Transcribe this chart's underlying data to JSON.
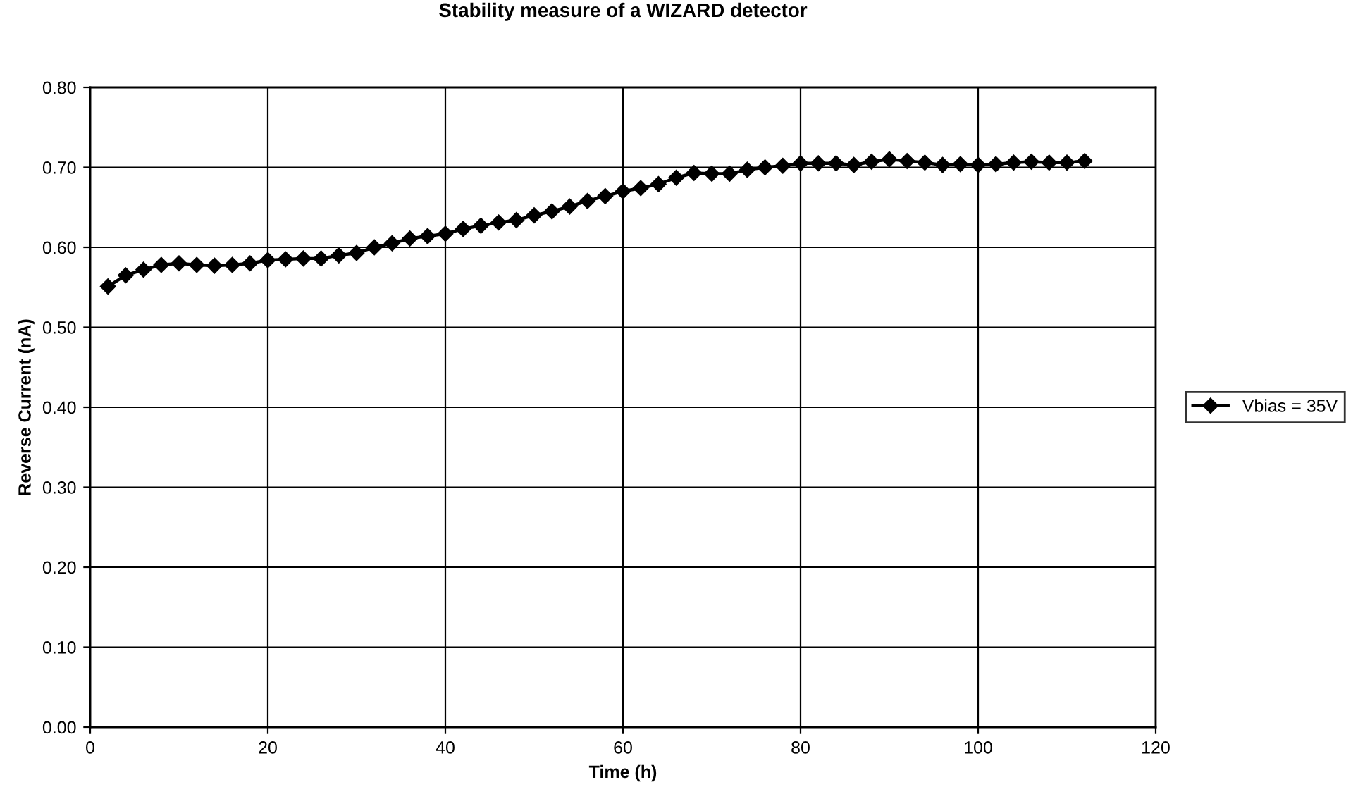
{
  "chart_data": {
    "type": "line",
    "title": "Stability measure of a WIZARD detector",
    "xlabel": "Time (h)",
    "ylabel": "Reverse Current (nA)",
    "x": [
      2,
      4,
      6,
      8,
      10,
      12,
      14,
      16,
      18,
      20,
      22,
      24,
      26,
      28,
      30,
      32,
      34,
      36,
      38,
      40,
      42,
      44,
      46,
      48,
      50,
      52,
      54,
      56,
      58,
      60,
      62,
      64,
      66,
      68,
      70,
      72,
      74,
      76,
      78,
      80,
      82,
      84,
      86,
      88,
      90,
      92,
      94,
      96,
      98,
      100,
      102,
      104,
      106,
      108,
      110,
      112
    ],
    "series": [
      {
        "name": "Vbias = 35V",
        "color": "#000000",
        "values": [
          0.551,
          0.565,
          0.572,
          0.578,
          0.58,
          0.578,
          0.577,
          0.578,
          0.58,
          0.584,
          0.585,
          0.586,
          0.586,
          0.59,
          0.593,
          0.6,
          0.605,
          0.611,
          0.614,
          0.617,
          0.623,
          0.627,
          0.631,
          0.634,
          0.64,
          0.645,
          0.651,
          0.658,
          0.664,
          0.67,
          0.674,
          0.679,
          0.687,
          0.693,
          0.692,
          0.692,
          0.697,
          0.7,
          0.702,
          0.705,
          0.705,
          0.705,
          0.703,
          0.707,
          0.71,
          0.708,
          0.706,
          0.703,
          0.704,
          0.703,
          0.704,
          0.706,
          0.707,
          0.706,
          0.706,
          0.708
        ]
      }
    ],
    "xlim": [
      0,
      120
    ],
    "xticks": [
      0,
      20,
      40,
      60,
      80,
      100,
      120
    ],
    "ylim": [
      0,
      0.8
    ],
    "yticks": [
      {
        "value": 0,
        "label": "0.00"
      },
      {
        "value": 0.1,
        "label": "0.10"
      },
      {
        "value": 0.2,
        "label": "0.20"
      },
      {
        "value": 0.3,
        "label": "0.30"
      },
      {
        "value": 0.4,
        "label": "0.40"
      },
      {
        "value": 0.5,
        "label": "0.50"
      },
      {
        "value": 0.6,
        "label": "0.60"
      },
      {
        "value": 0.7,
        "label": "0.70"
      },
      {
        "value": 0.8,
        "label": "0.80"
      }
    ],
    "grid": true,
    "legend": "right",
    "marker": "diamond",
    "line_style": "solid"
  }
}
